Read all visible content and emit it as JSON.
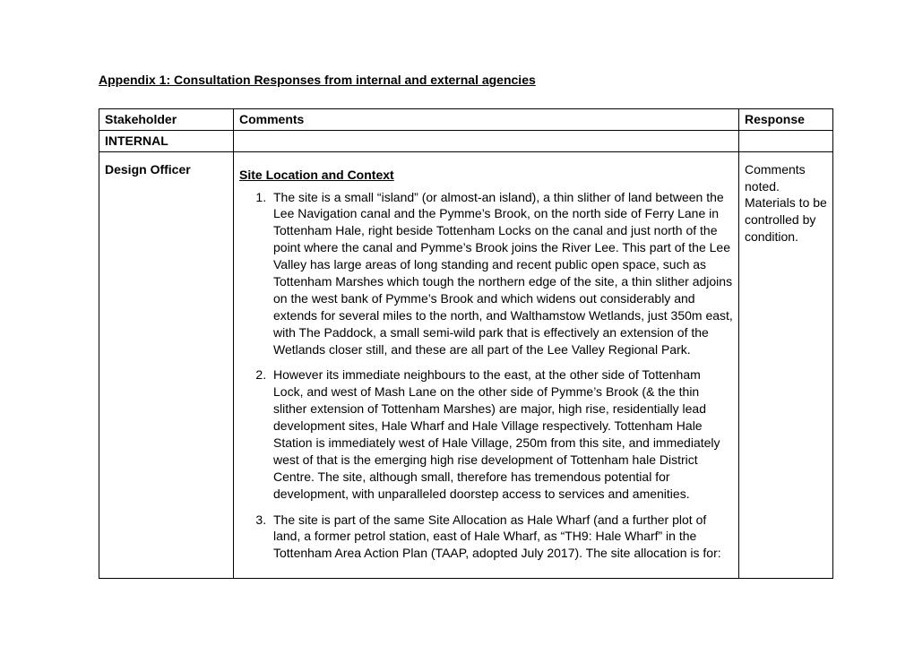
{
  "title": "Appendix 1: Consultation Responses from internal and external agencies",
  "columns": {
    "stakeholder": "Stakeholder",
    "comments": "Comments",
    "response": "Response"
  },
  "section_row": "INTERNAL",
  "body": {
    "stakeholder": "Design Officer",
    "section_heading": "Site Location and Context",
    "items": [
      "The site is a small “island” (or almost-an island), a thin slither of land between the Lee Navigation canal and the Pymme’s Brook, on the north side of Ferry Lane in Tottenham Hale, right beside Tottenham Locks on the canal and just north of the point where the canal and Pymme’s Brook joins the River Lee.  This part of the Lee Valley has large areas of long standing and recent public open space, such as Tottenham Marshes which tough the northern edge of the site, a thin slither adjoins on the west bank of Pymme’s Brook and which widens out considerably and extends for several miles to the north, and Walthamstow Wetlands, just 350m east, with The Paddock, a small semi-wild park that is effectively an extension of the Wetlands closer still, and these are all part of the Lee Valley Regional Park.",
      "However its immediate neighbours to the east, at the other side of Tottenham Lock, and west of Mash Lane on the other side of Pymme’s Brook (& the thin slither extension of Tottenham Marshes) are major, high rise, residentially lead development sites, Hale Wharf and Hale Village respectively.  Tottenham Hale Station is immediately west of Hale Village, 250m from this site, and immediately west of that is the emerging high rise development of Tottenham hale District Centre.  The site, although small, therefore has tremendous potential for development, with unparalleled doorstep access to services and amenities.",
      "The site is part of the same Site Allocation as Hale Wharf (and a further plot of land, a former petrol station, east of Hale Wharf, as “TH9: Hale Wharf” in the Tottenham Area Action Plan (TAAP, adopted July 2017).  The site allocation is for:"
    ],
    "response": "Comments noted. Materials to be controlled by condition."
  }
}
